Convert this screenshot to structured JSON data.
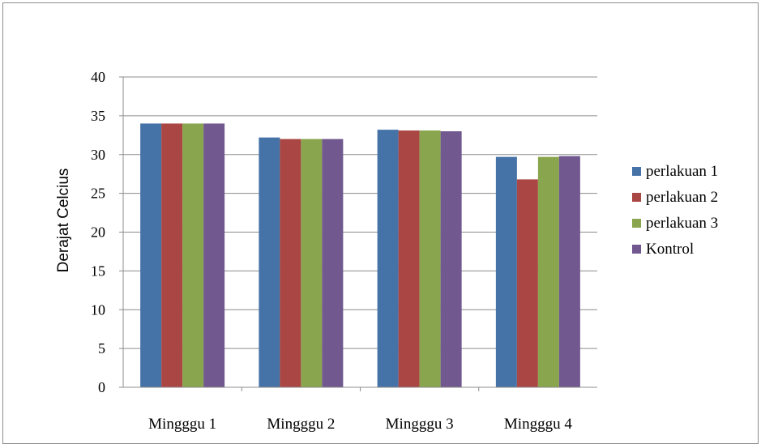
{
  "chart_data": {
    "type": "bar",
    "title": "",
    "xlabel": "",
    "ylabel": "Derajat Celcius",
    "ylim": [
      0,
      40
    ],
    "yticks": [
      0,
      5,
      10,
      15,
      20,
      25,
      30,
      35,
      40
    ],
    "grid": true,
    "legend_position": "right",
    "categories": [
      "Mingggu 1",
      "Mingggu 2",
      "Mingggu 3",
      "Mingggu 4"
    ],
    "series": [
      {
        "name": "perlakuan 1",
        "color": "#4572a7",
        "values": [
          34,
          32.2,
          33.2,
          29.7
        ]
      },
      {
        "name": "perlakuan 2",
        "color": "#aa4643",
        "values": [
          34,
          32,
          33.1,
          26.8
        ]
      },
      {
        "name": "perlakuan 3",
        "color": "#89a54e",
        "values": [
          34,
          32,
          33.1,
          29.7
        ]
      },
      {
        "name": "Kontrol",
        "color": "#71588f",
        "values": [
          34,
          32,
          33,
          29.8
        ]
      }
    ]
  }
}
